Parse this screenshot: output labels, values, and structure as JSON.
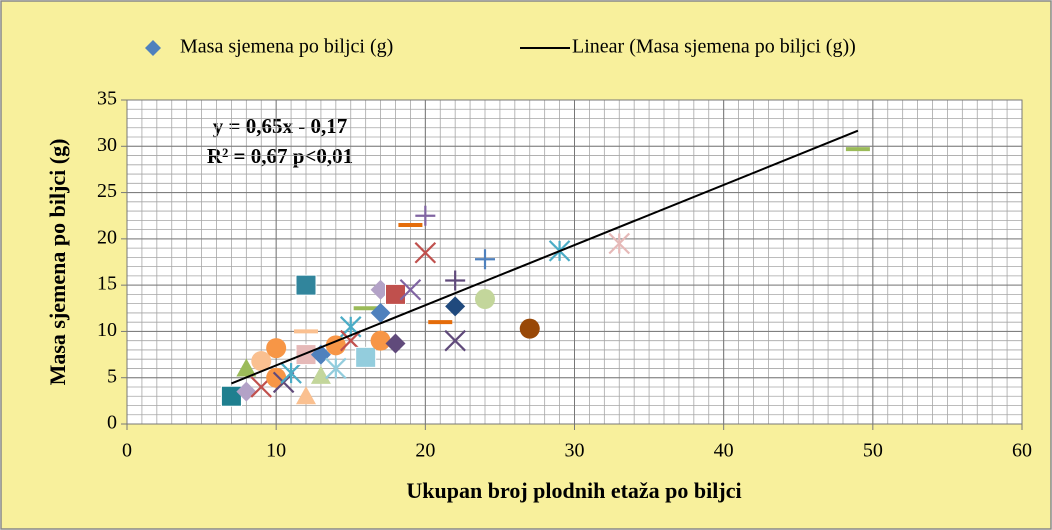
{
  "chart_data": {
    "type": "scatter",
    "x_label": "Ukupan broj  plodnih etaža po biljci",
    "y_label": "Masa sjemena po biljci (g)",
    "annotations": [
      "y = 0,65x - 0,17",
      "R² = 0,67 p<0,01"
    ],
    "series": [
      {
        "name": "Masa sjemena po biljci (g)",
        "color": "#4f81bd",
        "x": [
          7,
          8,
          8,
          9,
          9,
          10,
          10,
          10.5,
          11,
          12,
          12,
          12,
          12,
          13,
          13,
          14,
          14,
          15,
          15,
          16,
          16,
          17,
          17,
          17,
          18,
          18,
          19,
          19,
          20,
          20,
          21,
          22,
          22,
          22,
          24,
          24,
          27,
          29,
          33,
          49
        ],
        "values": [
          3,
          3.5,
          6,
          4,
          6.8,
          8.2,
          5,
          4.5,
          5.5,
          15,
          10,
          7.5,
          3,
          5.2,
          7.5,
          8.5,
          6,
          10.5,
          9,
          12.5,
          7.2,
          14.5,
          12,
          9,
          14,
          8.7,
          14.5,
          21.5,
          22.5,
          18.5,
          11,
          15.5,
          12.7,
          9,
          17.8,
          13.5,
          10.3,
          18.7,
          19.5,
          29.7
        ],
        "markers": [
          "square",
          "diamond",
          "triangle",
          "x",
          "circle",
          "circle",
          "circle",
          "x",
          "star",
          "square",
          "dash",
          "square",
          "triangle",
          "triangle",
          "diamond",
          "circle",
          "star",
          "star",
          "x",
          "dash",
          "square",
          "diamond",
          "diamond",
          "circle",
          "square",
          "diamond",
          "x",
          "dash",
          "plus",
          "x",
          "dash",
          "plus",
          "diamond",
          "x",
          "plus",
          "circle",
          "circle",
          "star",
          "star",
          "dash"
        ],
        "colors": [
          "#1f7f8f",
          "#b3a2c7",
          "#9bbb59",
          "#c0504d",
          "#fac090",
          "#f79646",
          "#f79646",
          "#604a7b",
          "#4bacc6",
          "#31859c",
          "#fac090",
          "#e6b9b8",
          "#fac090",
          "#c3d69b",
          "#4f81bd",
          "#f79646",
          "#93cddd",
          "#4bacc6",
          "#c0504d",
          "#9bbb59",
          "#93cddd",
          "#b3a2c7",
          "#4f81bd",
          "#f79646",
          "#c0504d",
          "#604a7b",
          "#8064a2",
          "#e46c0a",
          "#8064a2",
          "#c0504d",
          "#e46c0a",
          "#604a7b",
          "#1f497d",
          "#604a7b",
          "#4f81bd",
          "#c3d69b",
          "#984807",
          "#4bacc6",
          "#e6b9b8",
          "#9bbb59"
        ]
      }
    ],
    "trendline": {
      "name": "Linear (Masa sjemena po biljci (g))",
      "slope": 0.65,
      "intercept": -0.17,
      "color": "#000000"
    },
    "xlim": [
      0,
      60
    ],
    "xticks": [
      0,
      10,
      20,
      30,
      40,
      50,
      60
    ],
    "ylim": [
      0,
      35
    ],
    "yticks": [
      0,
      5,
      10,
      15,
      20,
      25,
      30,
      35
    ],
    "grid": true,
    "minor_grid_step": 1,
    "legend": "top",
    "background": "#f8f09c"
  }
}
